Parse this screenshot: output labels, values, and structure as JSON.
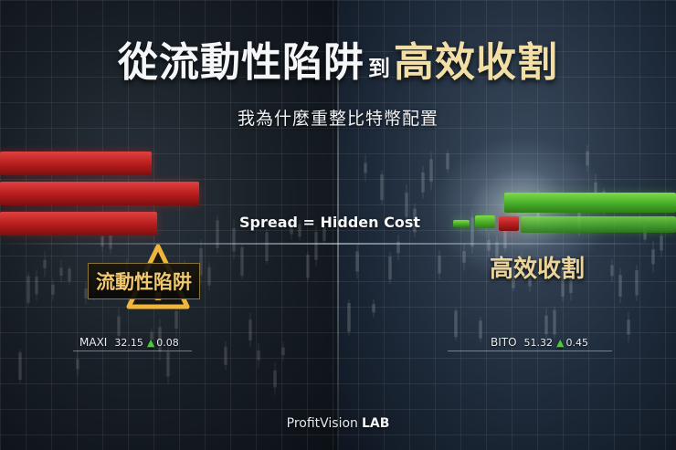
{
  "title": {
    "part1": "從流動性陷阱",
    "connector": "到",
    "part2": "高效收割"
  },
  "subtitle": "我為什麼重整比特幣配置",
  "center_label": "Spread = Hidden Cost",
  "left_panel": {
    "label": "流動性陷阱",
    "icon": "warning-triangle-icon",
    "bar_color": "#c42222",
    "ticker": {
      "symbol": "MAXI",
      "price": "32.15",
      "direction": "▲",
      "change": "0.08"
    }
  },
  "right_panel": {
    "label": "高效收割",
    "bar_color": "#4fb52e",
    "ticker": {
      "symbol": "BITO",
      "price": "51.32",
      "direction": "▲",
      "change": "0.45"
    }
  },
  "brand": {
    "name": "ProfitVision",
    "suffix": "LAB"
  },
  "colors": {
    "accent_gold": "#f2dfa6",
    "up_green": "#4cc93c",
    "down_red": "#c42222"
  }
}
